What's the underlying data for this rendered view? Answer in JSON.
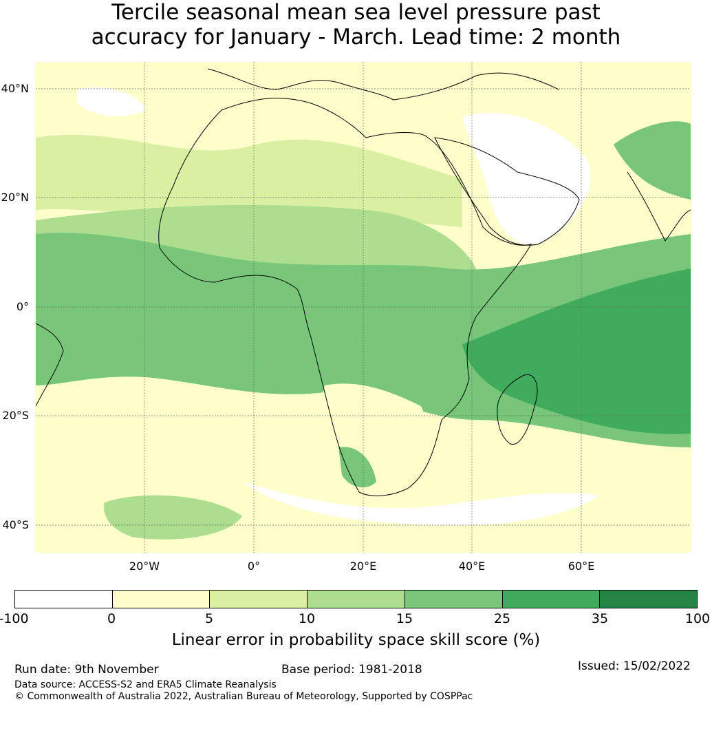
{
  "title": {
    "line1": "Tercile seasonal mean sea level pressure past",
    "line2": "accuracy for January - March. Lead time: 2 month"
  },
  "map": {
    "region": "Africa",
    "lat_labels": [
      "40°N",
      "20°N",
      "0°",
      "20°S",
      "40°S"
    ],
    "lon_labels": [
      "20°W",
      "0°",
      "20°E",
      "40°E",
      "60°E"
    ],
    "gridlines": true
  },
  "colorbar": {
    "label": "Linear error in probability space skill score (%)",
    "ticks": [
      "-100",
      "0",
      "5",
      "10",
      "15",
      "25",
      "35",
      "100"
    ],
    "colors": [
      "#ffffff",
      "#ffffcc",
      "#d9f0a3",
      "#addd8e",
      "#78c679",
      "#41ab5d",
      "#238443"
    ]
  },
  "footer": {
    "run_date": "Run date: 9th November",
    "base_period": "Base period: 1981-2018",
    "issued": "Issued: 15/02/2022",
    "data_source": "Data source: ACCESS-S2 and ERA5 Climate Reanalysis",
    "copyright": "© Commonwealth of Australia 2022, Australian Bureau of Meteorology, Supported by COSPPac"
  }
}
